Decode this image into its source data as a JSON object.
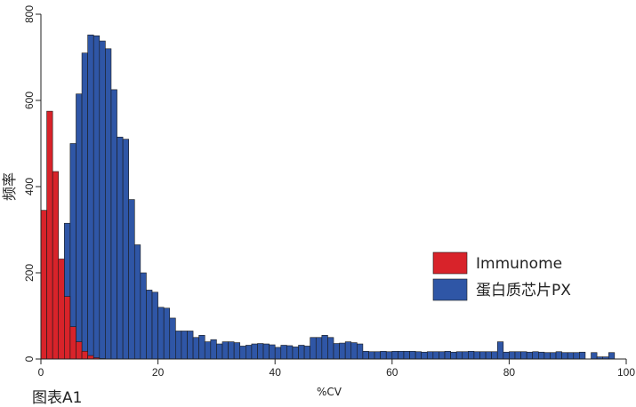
{
  "caption": "图表A1",
  "chart_data": {
    "type": "bar",
    "subtype": "overlapping-histogram",
    "title": "",
    "xlabel": "%CV",
    "ylabel": "频率",
    "xlim": [
      0,
      100
    ],
    "ylim": [
      0,
      800
    ],
    "x_ticks": [
      0,
      20,
      40,
      60,
      80,
      100
    ],
    "y_ticks": [
      0,
      200,
      400,
      600,
      800
    ],
    "bin_width": 1,
    "legend_position": "right-center",
    "series": [
      {
        "name": "Immunome",
        "color": "#d8232a",
        "bin_start": 0,
        "values": [
          345,
          575,
          435,
          232,
          145,
          75,
          40,
          18,
          8,
          3,
          1
        ]
      },
      {
        "name": "蛋白质芯片PX",
        "color": "#2f56a6",
        "bin_start": 0,
        "values": [
          0,
          0,
          0,
          160,
          315,
          500,
          615,
          710,
          752,
          750,
          738,
          720,
          625,
          515,
          510,
          370,
          265,
          200,
          160,
          155,
          120,
          118,
          95,
          65,
          65,
          65,
          50,
          55,
          40,
          45,
          35,
          40,
          40,
          38,
          30,
          32,
          35,
          36,
          35,
          33,
          27,
          32,
          31,
          28,
          32,
          30,
          50,
          50,
          55,
          50,
          36,
          37,
          40,
          38,
          35,
          18,
          17,
          17,
          18,
          17,
          18,
          18,
          18,
          18,
          17,
          16,
          17,
          17,
          17,
          18,
          16,
          17,
          17,
          18,
          17,
          17,
          17,
          17,
          40,
          16,
          17,
          17,
          17,
          16,
          17,
          16,
          15,
          15,
          17,
          15,
          15,
          15,
          16,
          0,
          15,
          5,
          5,
          15
        ]
      }
    ]
  }
}
